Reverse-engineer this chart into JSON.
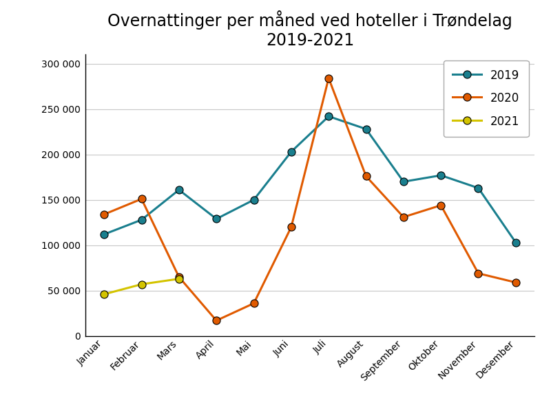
{
  "title": "Overnattinger per måned ved hoteller i Trøndelag\n2019-2021",
  "months": [
    "Januar",
    "Februar",
    "Mars",
    "April",
    "Mai",
    "Juni",
    "Juli",
    "August",
    "September",
    "Oktober",
    "November",
    "Desember"
  ],
  "series": {
    "2019": {
      "values": [
        112000,
        128000,
        161000,
        129000,
        150000,
        203000,
        242000,
        228000,
        170000,
        177000,
        163000,
        103000
      ],
      "color": "#1a7f8e",
      "marker": "o",
      "zorder": 3
    },
    "2020": {
      "values": [
        134000,
        151000,
        65000,
        17000,
        36000,
        120000,
        284000,
        176000,
        131000,
        144000,
        69000,
        59000
      ],
      "color": "#e05a00",
      "marker": "o",
      "zorder": 3
    },
    "2021": {
      "values": [
        46000,
        57000,
        63000,
        null,
        null,
        null,
        null,
        null,
        null,
        null,
        null,
        null
      ],
      "color": "#d4c400",
      "marker": "o",
      "zorder": 3
    }
  },
  "ylim": [
    0,
    310000
  ],
  "yticks": [
    0,
    50000,
    100000,
    150000,
    200000,
    250000,
    300000
  ],
  "ytick_labels": [
    "0",
    "50 000",
    "100 000",
    "150 000",
    "200 000",
    "250 000",
    "300 000"
  ],
  "grid_color": "#c8c8c8",
  "background_color": "#ffffff",
  "title_fontsize": 17,
  "tick_fontsize": 10,
  "legend_fontsize": 12,
  "linewidth": 2.2,
  "markersize": 8
}
